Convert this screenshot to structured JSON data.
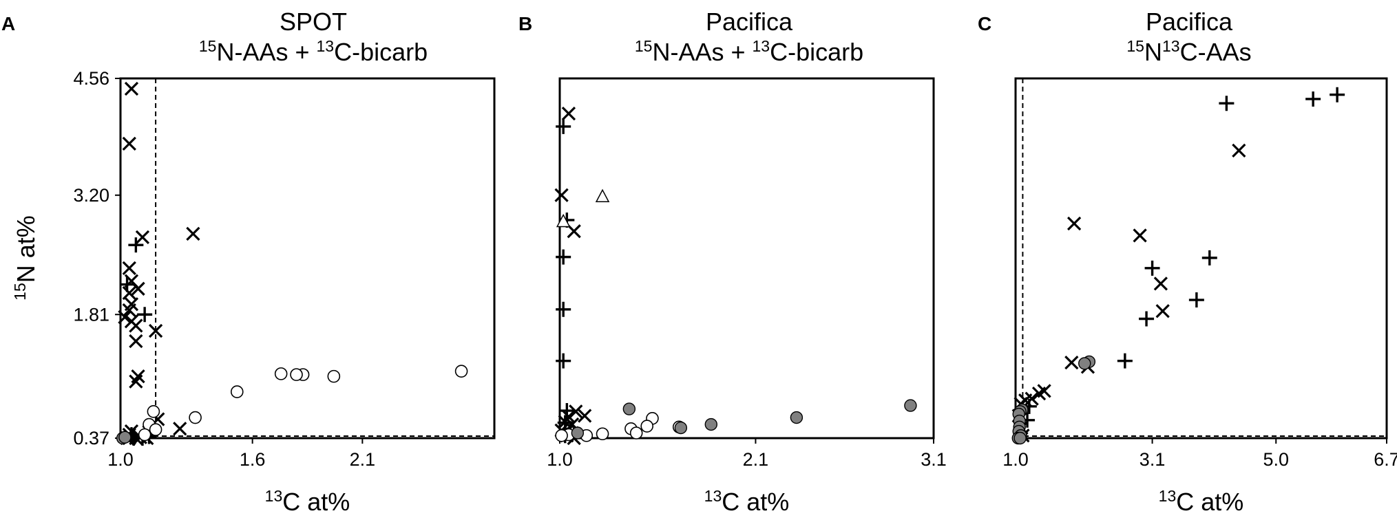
{
  "figure": {
    "ylabel_iso": "15",
    "ylabel_text": "N at%",
    "markers": {
      "circle_open": "#ffffff",
      "circle_filled": "#808080",
      "stroke": "#000000"
    }
  },
  "chart_data": [
    {
      "panel": "A",
      "type": "scatter",
      "title_line1": "SPOT",
      "title_line2": [
        {
          "t": "15",
          "sup": true
        },
        {
          "t": "N-AAs + ",
          "sup": false
        },
        {
          "t": "13",
          "sup": true
        },
        {
          "t": "C-bicarb",
          "sup": false
        }
      ],
      "xlabel_iso": "13",
      "xlabel_text": "C at%",
      "xlim": [
        1.0,
        2.7
      ],
      "ylim": [
        0.37,
        4.56
      ],
      "xticks": [
        1.0,
        1.6,
        2.1
      ],
      "xtick_labels": [
        "1.0",
        "1.6",
        "2.1"
      ],
      "yticks": [
        0.37,
        1.81,
        3.2,
        4.56
      ],
      "ytick_labels": [
        "0.37",
        "1.81",
        "3.20",
        "4.56"
      ],
      "threshold_x": 1.16,
      "threshold_y": 0.37,
      "series": [
        {
          "marker": "x",
          "points": [
            [
              1.05,
              4.44
            ],
            [
              1.04,
              3.8
            ],
            [
              1.1,
              2.71
            ],
            [
              1.33,
              2.75
            ],
            [
              1.04,
              2.35
            ],
            [
              1.05,
              2.2
            ],
            [
              1.08,
              2.11
            ],
            [
              1.04,
              2.06
            ],
            [
              1.05,
              1.93
            ],
            [
              1.04,
              1.86
            ],
            [
              1.02,
              1.78
            ],
            [
              1.05,
              1.73
            ],
            [
              1.07,
              1.68
            ],
            [
              1.16,
              1.62
            ],
            [
              1.07,
              1.5
            ],
            [
              1.08,
              1.09
            ],
            [
              1.07,
              1.03
            ],
            [
              1.17,
              0.59
            ],
            [
              1.27,
              0.48
            ],
            [
              1.05,
              0.45
            ],
            [
              1.13,
              0.44
            ],
            [
              1.04,
              0.41
            ],
            [
              1.09,
              0.38
            ],
            [
              1.07,
              0.37
            ],
            [
              1.04,
              0.37
            ],
            [
              1.12,
              0.37
            ],
            [
              1.03,
              0.37
            ]
          ]
        },
        {
          "marker": "+",
          "points": [
            [
              1.07,
              2.62
            ],
            [
              1.03,
              2.16
            ],
            [
              1.11,
              1.81
            ],
            [
              1.05,
              0.41
            ],
            [
              1.13,
              0.39
            ],
            [
              1.06,
              0.37
            ],
            [
              1.1,
              0.37
            ]
          ]
        },
        {
          "marker": "circle-open",
          "points": [
            [
              2.55,
              1.15
            ],
            [
              1.97,
              1.09
            ],
            [
              1.83,
              1.11
            ],
            [
              1.8,
              1.11
            ],
            [
              1.73,
              1.12
            ],
            [
              1.53,
              0.91
            ],
            [
              1.34,
              0.61
            ],
            [
              1.15,
              0.68
            ],
            [
              1.13,
              0.53
            ],
            [
              1.16,
              0.47
            ],
            [
              1.11,
              0.41
            ]
          ]
        },
        {
          "marker": "circle-gray",
          "points": [
            [
              1.01,
              0.37
            ],
            [
              1.02,
              0.38
            ]
          ]
        }
      ]
    },
    {
      "panel": "B",
      "type": "scatter",
      "title_line1": "Pacifica",
      "title_line2": [
        {
          "t": "15",
          "sup": true
        },
        {
          "t": "N-AAs + ",
          "sup": false
        },
        {
          "t": "13",
          "sup": true
        },
        {
          "t": "C-bicarb",
          "sup": false
        }
      ],
      "xlabel_iso": "13",
      "xlabel_text": "C at%",
      "xlim": [
        1.0,
        3.1
      ],
      "ylim": [
        0.37,
        4.56
      ],
      "xticks": [
        1.0,
        2.1,
        3.1
      ],
      "xtick_labels": [
        "1.0",
        "2.1",
        "3.1"
      ],
      "yticks": [],
      "ytick_labels": [],
      "series": [
        {
          "marker": "x",
          "points": [
            [
              1.05,
              4.15
            ],
            [
              1.01,
              3.2
            ],
            [
              1.08,
              2.78
            ],
            [
              1.09,
              0.68
            ],
            [
              1.14,
              0.63
            ],
            [
              1.05,
              0.62
            ],
            [
              1.03,
              0.56
            ],
            [
              1.07,
              0.53
            ],
            [
              1.01,
              0.46
            ],
            [
              1.04,
              0.4
            ],
            [
              1.08,
              0.37
            ]
          ]
        },
        {
          "marker": "+",
          "points": [
            [
              1.02,
              4.0
            ],
            [
              1.04,
              2.91
            ],
            [
              1.02,
              2.48
            ],
            [
              1.02,
              1.87
            ],
            [
              1.02,
              1.27
            ],
            [
              1.04,
              0.69
            ],
            [
              1.03,
              0.55
            ],
            [
              1.06,
              0.48
            ],
            [
              1.03,
              0.4
            ]
          ]
        },
        {
          "marker": "triangle-open",
          "points": [
            [
              1.24,
              3.18
            ],
            [
              1.02,
              2.89
            ],
            [
              1.07,
              0.43
            ]
          ]
        },
        {
          "marker": "triangle-gray",
          "points": [
            [
              1.1,
              0.42
            ]
          ]
        },
        {
          "marker": "circle-open",
          "points": [
            [
              1.52,
              0.6
            ],
            [
              1.49,
              0.51
            ],
            [
              1.4,
              0.48
            ],
            [
              1.43,
              0.43
            ],
            [
              1.67,
              0.5
            ],
            [
              1.24,
              0.42
            ],
            [
              1.15,
              0.4
            ],
            [
              1.05,
              0.41
            ],
            [
              1.01,
              0.4
            ]
          ]
        },
        {
          "marker": "circle-gray",
          "points": [
            [
              2.97,
              0.75
            ],
            [
              2.33,
              0.61
            ],
            [
              1.85,
              0.53
            ],
            [
              1.68,
              0.49
            ],
            [
              1.39,
              0.71
            ],
            [
              1.1,
              0.43
            ]
          ]
        }
      ]
    },
    {
      "panel": "C",
      "type": "scatter",
      "title_line1": "Pacifica",
      "title_line2": [
        {
          "t": "15",
          "sup": true
        },
        {
          "t": "N",
          "sup": false
        },
        {
          "t": "13",
          "sup": true
        },
        {
          "t": "C-AAs",
          "sup": false
        }
      ],
      "xlabel_iso": "13",
      "xlabel_text": "C at%",
      "xlim": [
        1.0,
        6.7
      ],
      "ylim": [
        0.37,
        4.56
      ],
      "xticks": [
        1.0,
        3.1,
        5.0,
        6.7
      ],
      "xtick_labels": [
        "1.0",
        "3.1",
        "5.0",
        "6.7"
      ],
      "yticks": [],
      "ytick_labels": [],
      "threshold_x": 1.11,
      "threshold_y": 0.37,
      "series": [
        {
          "marker": "x",
          "points": [
            [
              4.43,
              3.72
            ],
            [
              1.9,
              2.87
            ],
            [
              2.91,
              2.73
            ],
            [
              3.23,
              2.17
            ],
            [
              3.26,
              1.85
            ],
            [
              1.86,
              1.25
            ],
            [
              2.11,
              1.2
            ],
            [
              1.44,
              0.92
            ],
            [
              1.36,
              0.89
            ],
            [
              1.25,
              0.83
            ],
            [
              1.15,
              0.81
            ],
            [
              1.08,
              0.77
            ],
            [
              1.05,
              0.63
            ],
            [
              1.09,
              0.49
            ],
            [
              1.11,
              0.4
            ]
          ]
        },
        {
          "marker": "+",
          "points": [
            [
              5.94,
              4.37
            ],
            [
              5.57,
              4.32
            ],
            [
              4.24,
              4.27
            ],
            [
              3.98,
              2.47
            ],
            [
              3.1,
              2.35
            ],
            [
              3.78,
              1.98
            ],
            [
              3.01,
              1.76
            ],
            [
              2.68,
              1.27
            ],
            [
              1.21,
              0.74
            ],
            [
              1.18,
              0.58
            ]
          ]
        },
        {
          "marker": "circle-gray",
          "points": [
            [
              2.13,
              1.26
            ],
            [
              2.06,
              1.24
            ],
            [
              1.1,
              0.7
            ],
            [
              1.07,
              0.68
            ],
            [
              1.05,
              0.65
            ],
            [
              1.06,
              0.57
            ],
            [
              1.06,
              0.5
            ],
            [
              1.05,
              0.45
            ],
            [
              1.08,
              0.4
            ],
            [
              1.04,
              0.37
            ],
            [
              1.07,
              0.37
            ]
          ]
        }
      ]
    }
  ]
}
